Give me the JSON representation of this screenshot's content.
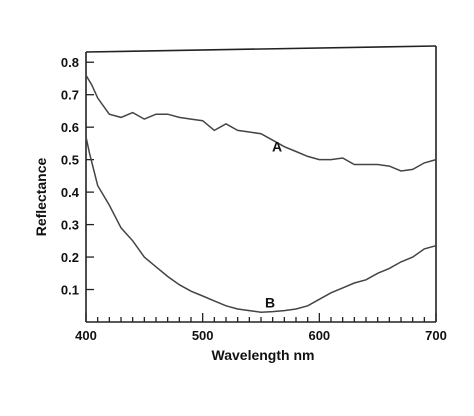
{
  "chart_data": {
    "type": "line",
    "xlabel": "Wavelength nm",
    "ylabel": "Reflectance",
    "xlim": [
      400,
      700
    ],
    "ylim": [
      0,
      0.85
    ],
    "x_ticks": [
      400,
      500,
      600,
      700
    ],
    "x_minor_ticks": [
      410,
      420,
      430,
      440,
      450,
      460,
      470,
      480,
      490,
      510,
      520,
      530,
      540,
      550,
      560,
      570,
      580,
      590,
      610,
      620,
      630,
      640,
      650,
      660,
      670,
      680,
      690
    ],
    "y_ticks": [
      0.1,
      0.2,
      0.3,
      0.4,
      0.5,
      0.6,
      0.7,
      0.8
    ],
    "y_tick_labels": [
      "0.1",
      "0.2",
      "0.3",
      "0.4",
      "0.5",
      "0.6",
      "0.7",
      "0.8"
    ],
    "grid": false,
    "series": [
      {
        "name": "A",
        "label_at": [
          556,
          0.54
        ],
        "x": [
          400,
          405,
          410,
          420,
          430,
          440,
          450,
          460,
          470,
          480,
          490,
          500,
          510,
          520,
          530,
          540,
          550,
          560,
          570,
          580,
          590,
          600,
          610,
          620,
          630,
          640,
          650,
          660,
          670,
          680,
          690,
          700
        ],
        "y": [
          0.76,
          0.73,
          0.69,
          0.64,
          0.63,
          0.645,
          0.625,
          0.64,
          0.64,
          0.63,
          0.625,
          0.62,
          0.59,
          0.61,
          0.59,
          0.585,
          0.58,
          0.56,
          0.54,
          0.525,
          0.51,
          0.5,
          0.5,
          0.505,
          0.485,
          0.485,
          0.485,
          0.48,
          0.465,
          0.47,
          0.49,
          0.5
        ]
      },
      {
        "name": "B",
        "label_at": [
          550,
          0.06
        ],
        "x": [
          400,
          403,
          410,
          420,
          430,
          440,
          450,
          460,
          470,
          480,
          490,
          500,
          510,
          520,
          530,
          540,
          550,
          560,
          570,
          580,
          590,
          600,
          610,
          620,
          630,
          640,
          650,
          660,
          670,
          680,
          690,
          700
        ],
        "y": [
          0.57,
          0.52,
          0.42,
          0.36,
          0.29,
          0.25,
          0.2,
          0.17,
          0.14,
          0.115,
          0.095,
          0.08,
          0.065,
          0.05,
          0.04,
          0.035,
          0.03,
          0.032,
          0.035,
          0.04,
          0.05,
          0.07,
          0.09,
          0.105,
          0.12,
          0.13,
          0.15,
          0.165,
          0.185,
          0.2,
          0.225,
          0.235
        ]
      }
    ]
  }
}
